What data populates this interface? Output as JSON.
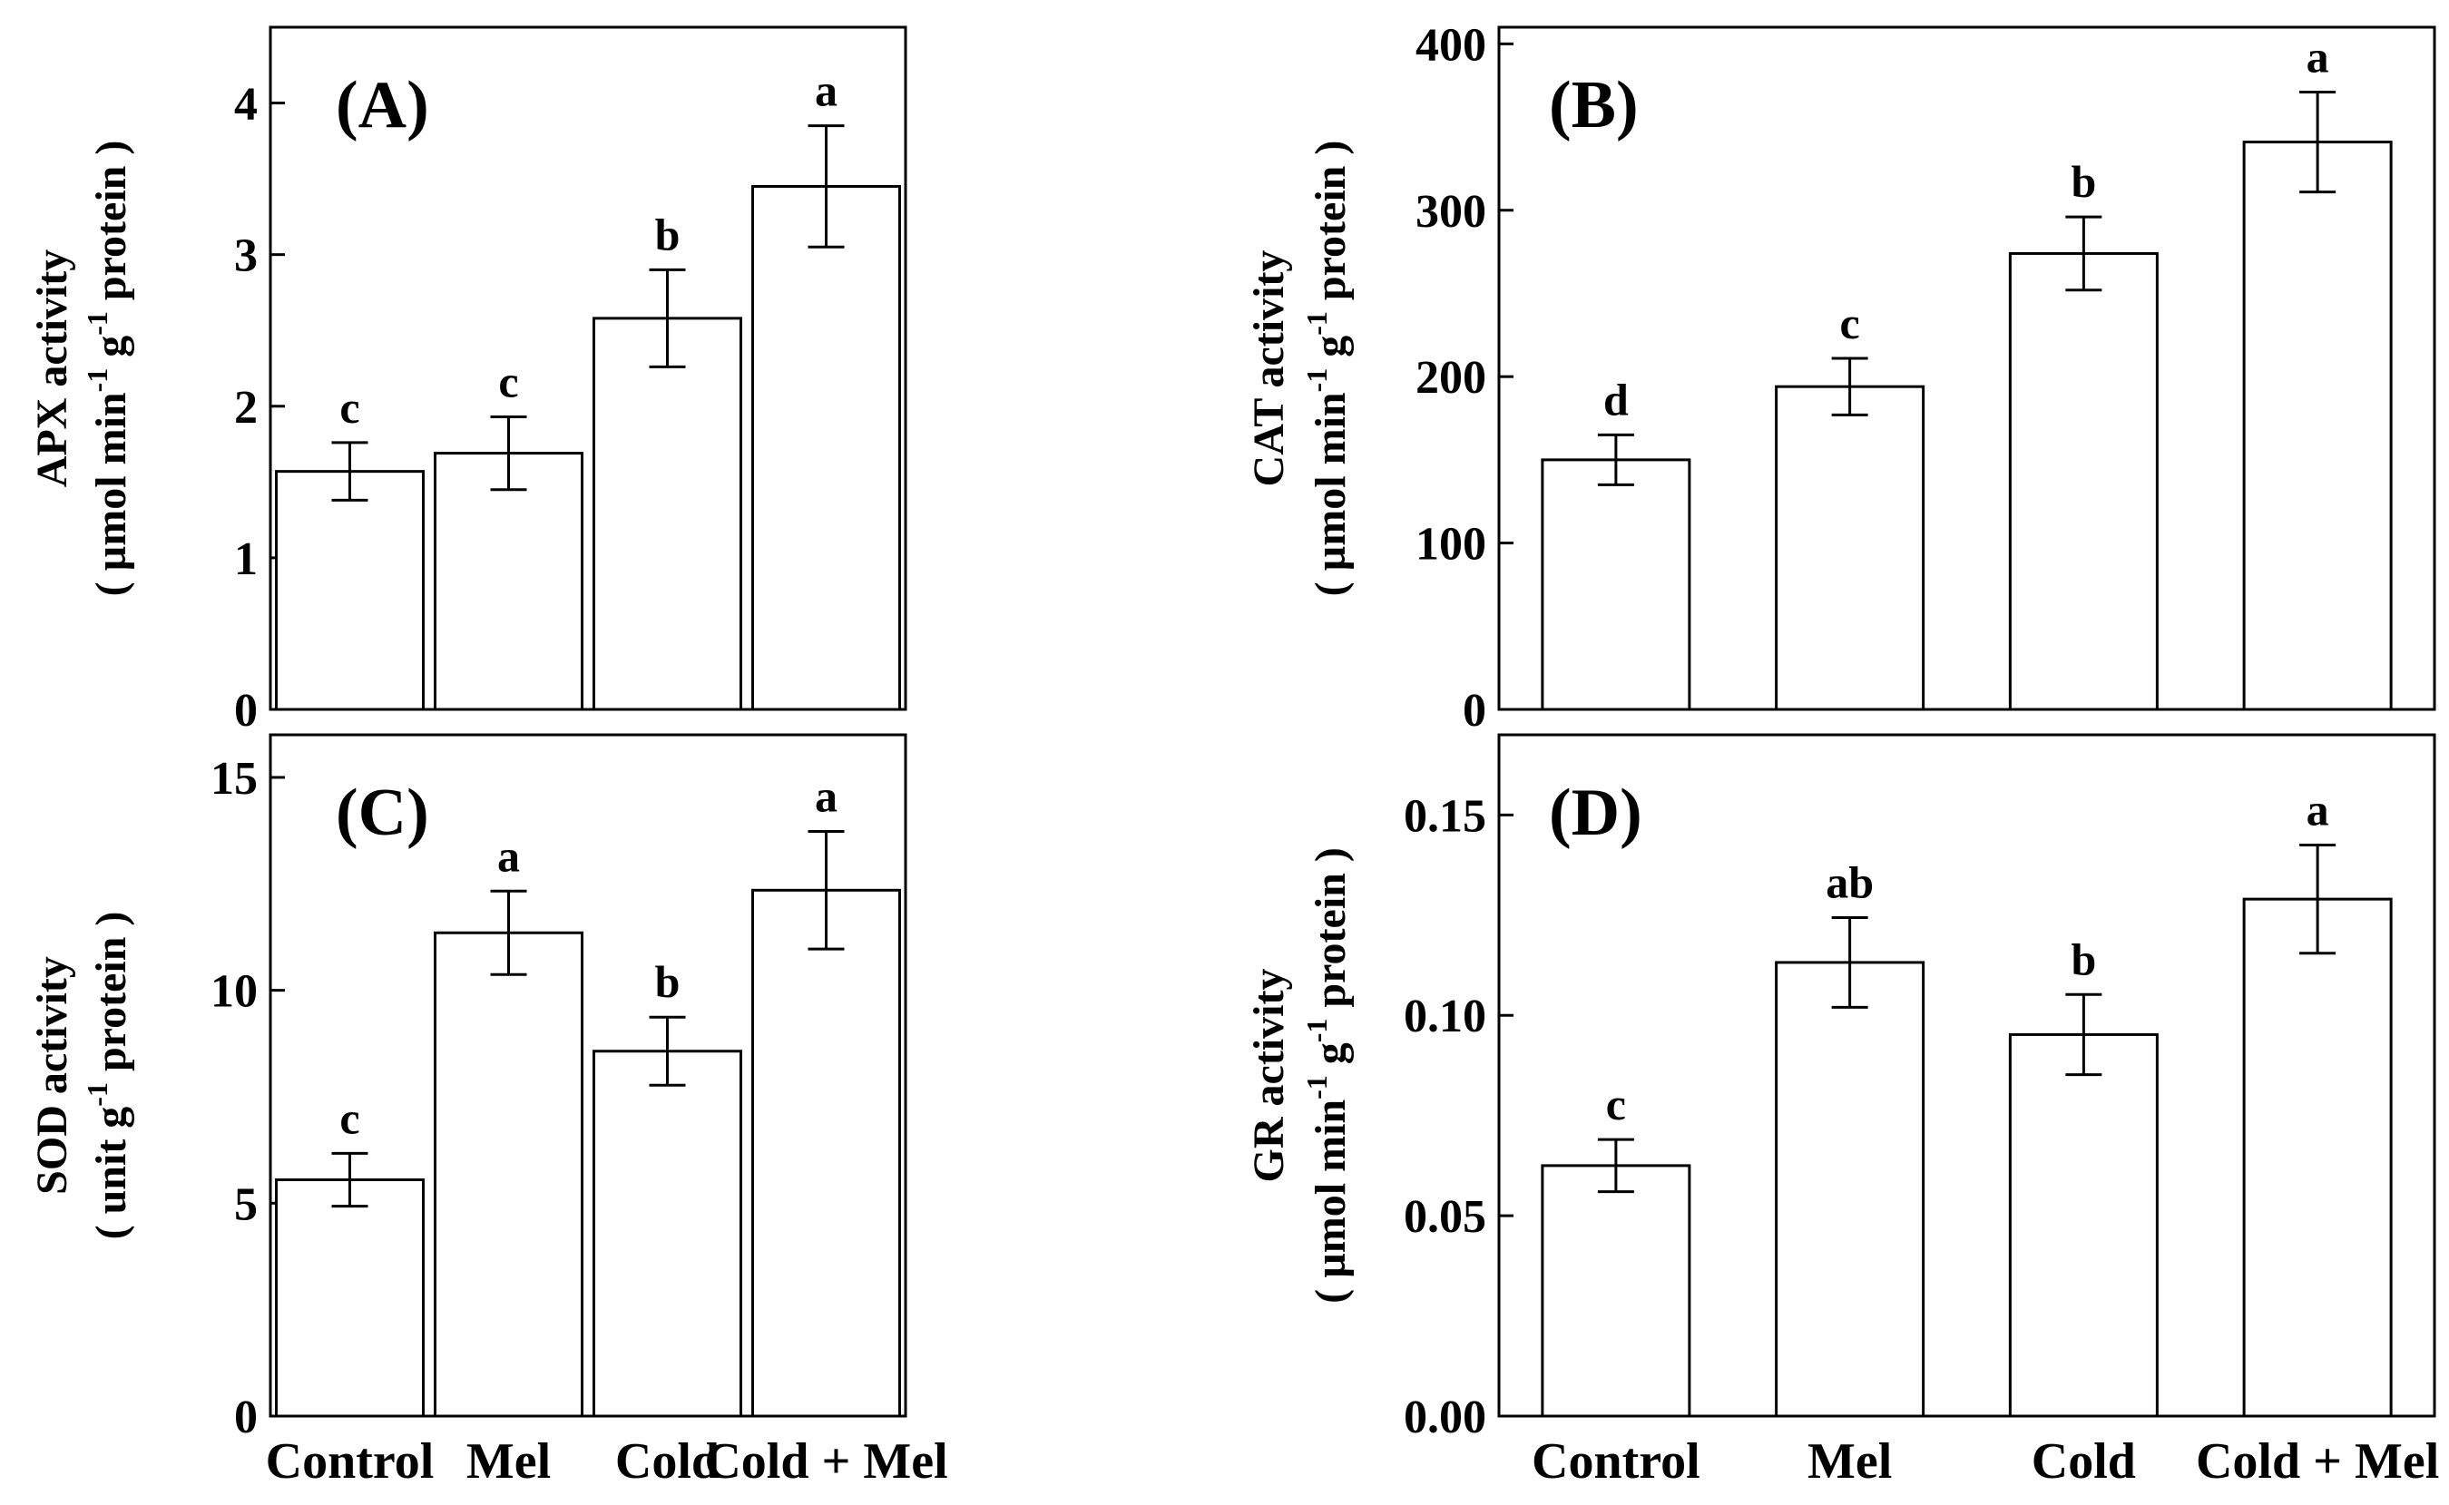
{
  "chart_data": [
    {
      "type": "bar",
      "panel_label": "(A)",
      "categories": [
        "Control",
        "Mel",
        "Cold",
        "Cold + Mel"
      ],
      "values": [
        1.57,
        1.69,
        2.58,
        3.45
      ],
      "errors": [
        0.19,
        0.24,
        0.32,
        0.4
      ],
      "significance": [
        "c",
        "c",
        "b",
        "a"
      ],
      "ylabel_line1": "APX activity",
      "ylabel_line2_parts": [
        "( µmol min",
        "-1",
        " g",
        "-1",
        " protein )"
      ],
      "ylim": [
        0,
        4.5
      ],
      "yticks": [
        0,
        1,
        2,
        3,
        4
      ],
      "ytick_labels": [
        "0",
        "1",
        "2",
        "3",
        "4"
      ]
    },
    {
      "type": "bar",
      "panel_label": "(B)",
      "categories": [
        "Control",
        "Mel",
        "Cold",
        "Cold + Mel"
      ],
      "values": [
        150,
        194,
        274,
        341
      ],
      "errors": [
        15,
        17,
        22,
        30
      ],
      "significance": [
        "d",
        "c",
        "b",
        "a"
      ],
      "ylabel_line1": "CAT activity",
      "ylabel_line2_parts": [
        "( µmol min",
        "-1",
        " g",
        "-1",
        " protein )"
      ],
      "ylim": [
        0,
        410
      ],
      "yticks": [
        0,
        100,
        200,
        300,
        400
      ],
      "ytick_labels": [
        "0",
        "100",
        "200",
        "300",
        "400"
      ]
    },
    {
      "type": "bar",
      "panel_label": "(C)",
      "categories": [
        "Control",
        "Mel",
        "Cold",
        "Cold + Mel"
      ],
      "values": [
        5.55,
        11.35,
        8.57,
        12.35
      ],
      "errors": [
        0.62,
        0.98,
        0.8,
        1.38
      ],
      "significance": [
        "c",
        "a",
        "b",
        "a"
      ],
      "ylabel_line1": "SOD activity",
      "ylabel_line2_parts": [
        "( unit g",
        "-1",
        " protein )"
      ],
      "ylim": [
        0,
        16
      ],
      "yticks": [
        0,
        5,
        10,
        15
      ],
      "ytick_labels": [
        "0",
        "5",
        "10",
        "15"
      ]
    },
    {
      "type": "bar",
      "panel_label": "(D)",
      "categories": [
        "Control",
        "Mel",
        "Cold",
        "Cold + Mel"
      ],
      "values": [
        0.0625,
        0.1132,
        0.0952,
        0.129
      ],
      "errors": [
        0.0065,
        0.0112,
        0.01,
        0.0135
      ],
      "significance": [
        "c",
        "ab",
        "b",
        "a"
      ],
      "ylabel_line1": "GR activity",
      "ylabel_line2_parts": [
        "( µmol min",
        "-1",
        " g",
        "-1",
        " protein )"
      ],
      "ylim": [
        0,
        0.17
      ],
      "yticks": [
        0,
        0.05,
        0.1,
        0.15
      ],
      "ytick_labels": [
        "0.00",
        "0.05",
        "0.10",
        "0.15"
      ]
    }
  ],
  "x_category_labels": [
    "Control",
    "Mel",
    "Cold",
    "Cold + Mel"
  ]
}
